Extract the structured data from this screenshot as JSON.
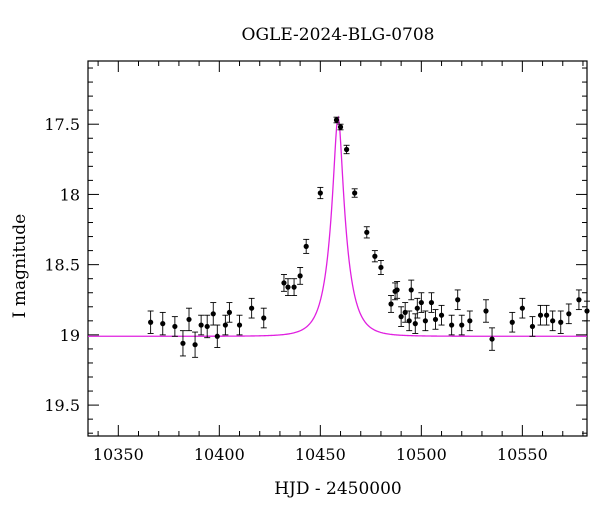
{
  "chart_data": {
    "type": "scatter",
    "title": "OGLE-2024-BLG-0708",
    "xlabel": "HJD - 2450000",
    "ylabel": "I magnitude",
    "xlim": [
      10335,
      10582
    ],
    "ylim": [
      19.72,
      17.05
    ],
    "y_inverted": true,
    "x_ticks": [
      10350,
      10400,
      10450,
      10500,
      10550
    ],
    "x_tick_labels": [
      "10350",
      "10400",
      "10450",
      "10500",
      "10550"
    ],
    "y_ticks": [
      17.5,
      18,
      18.5,
      19,
      19.5
    ],
    "y_tick_labels": [
      "17.5",
      "18",
      "18.5",
      "19",
      "19.5"
    ],
    "grid": false,
    "legend": "none",
    "colors": {
      "points": "#000000",
      "model": "#e020e0"
    },
    "model": {
      "t0": 10458.8,
      "baseline": 19.01,
      "peak": 17.45,
      "tE": 8.0
    },
    "series": [
      {
        "kind": "points",
        "x": [
          10366,
          10372,
          10378,
          10382,
          10385,
          10388,
          10391,
          10394,
          10397,
          10399,
          10403,
          10405,
          10410,
          10416,
          10422,
          10432,
          10434,
          10437,
          10440,
          10443,
          10450,
          10458,
          10460,
          10463,
          10467,
          10473,
          10477,
          10480,
          10485,
          10487,
          10488,
          10490,
          10492,
          10494,
          10495,
          10497,
          10498,
          10500,
          10502,
          10505,
          10507,
          10510,
          10515,
          10518,
          10520,
          10524,
          10532,
          10535,
          10545,
          10550,
          10555,
          10559,
          10562,
          10565,
          10569,
          10573,
          10578,
          10582
        ],
        "y": [
          18.91,
          18.92,
          18.94,
          19.06,
          18.89,
          19.07,
          18.93,
          18.94,
          18.85,
          19.01,
          18.93,
          18.84,
          18.93,
          18.81,
          18.88,
          18.63,
          18.66,
          18.66,
          18.58,
          18.37,
          17.99,
          17.47,
          17.52,
          17.68,
          17.99,
          18.27,
          18.44,
          18.52,
          18.78,
          18.69,
          18.68,
          18.87,
          18.84,
          18.9,
          18.68,
          18.92,
          18.81,
          18.77,
          18.9,
          18.77,
          18.89,
          18.86,
          18.93,
          18.75,
          18.93,
          18.9,
          18.83,
          19.03,
          18.91,
          18.81,
          18.94,
          18.86,
          18.86,
          18.9,
          18.91,
          18.85,
          18.75,
          18.83
        ],
        "yerr": [
          0.08,
          0.08,
          0.07,
          0.09,
          0.08,
          0.09,
          0.07,
          0.08,
          0.08,
          0.08,
          0.07,
          0.07,
          0.07,
          0.07,
          0.07,
          0.06,
          0.06,
          0.06,
          0.06,
          0.05,
          0.04,
          0.02,
          0.02,
          0.03,
          0.03,
          0.04,
          0.04,
          0.05,
          0.06,
          0.06,
          0.06,
          0.07,
          0.07,
          0.07,
          0.07,
          0.07,
          0.07,
          0.07,
          0.07,
          0.07,
          0.07,
          0.07,
          0.07,
          0.07,
          0.07,
          0.07,
          0.08,
          0.08,
          0.07,
          0.07,
          0.07,
          0.07,
          0.07,
          0.07,
          0.08,
          0.07,
          0.07,
          0.07
        ]
      }
    ]
  }
}
